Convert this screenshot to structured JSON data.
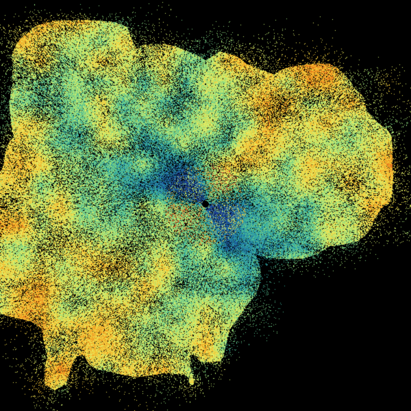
{
  "image": {
    "subject": "radar-sweep",
    "background": "#000000",
    "colormap": [
      "#1b3f8f",
      "#1f7fa8",
      "#33b0a0",
      "#8fdc7c",
      "#e6f268",
      "#f4c430",
      "#ef8a1c",
      "#d2321a"
    ]
  }
}
